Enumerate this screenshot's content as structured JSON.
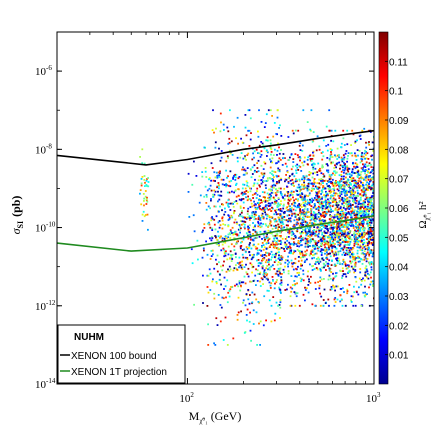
{
  "chart_data": {
    "type": "scatter",
    "xlabel": "M_{χ̃⁰₁} (GeV)",
    "xlabel_main": "M",
    "xlabel_sub": "χ̃⁰₁",
    "xlabel_unit": "(GeV)",
    "ylabel": "σ_SI (pb)",
    "ylabel_main": "σ",
    "ylabel_sub": "SI",
    "ylabel_unit": "(pb)",
    "x_scale": "log",
    "y_scale": "log",
    "xlim": [
      20,
      1000
    ],
    "ylim": [
      1e-14,
      1e-05
    ],
    "x_ticks": [
      {
        "value": 100,
        "base": "10",
        "exp": "2"
      },
      {
        "value": 1000,
        "base": "10",
        "exp": "3"
      }
    ],
    "y_ticks": [
      {
        "value": 1e-06,
        "base": "10",
        "exp": "-6"
      },
      {
        "value": 1e-08,
        "base": "10",
        "exp": "-8"
      },
      {
        "value": 1e-10,
        "base": "10",
        "exp": "-10"
      },
      {
        "value": 1e-12,
        "base": "10",
        "exp": "-12"
      },
      {
        "value": 1e-14,
        "base": "10",
        "exp": "-14"
      }
    ],
    "colorbar": {
      "label": "Ω_{χ̃⁰₁} h²",
      "label_main": "Ω",
      "label_sub": "χ̃⁰₁",
      "label_rest": "h²",
      "range": [
        0.0,
        0.12
      ],
      "ticks": [
        "0.11",
        "0.1",
        "0.09",
        "0.08",
        "0.07",
        "0.06",
        "0.05",
        "0.04",
        "0.03",
        "0.02",
        "0.01"
      ],
      "tick_values": [
        0.11,
        0.1,
        0.09,
        0.08,
        0.07,
        0.06,
        0.05,
        0.04,
        0.03,
        0.02,
        0.01
      ],
      "colormap": "jet"
    },
    "legend": {
      "placement": "bottom-left",
      "entries": [
        {
          "label": "NUHM",
          "style": "none",
          "color": "#000000"
        },
        {
          "label": "XENON 100 bound",
          "style": "line",
          "color": "#000000"
        },
        {
          "label": "XENON 1T projection",
          "style": "line",
          "color": "#1f8a1f"
        }
      ]
    },
    "series": [
      {
        "label_key": "legend.entries.1",
        "color": "#000000",
        "x": [
          20,
          60,
          100,
          200,
          300,
          400,
          500,
          700,
          1000
        ],
        "y": [
          7e-09,
          4e-09,
          5.5e-09,
          1e-08,
          1.3e-08,
          1.6e-08,
          1.9e-08,
          2.4e-08,
          3e-08
        ]
      },
      {
        "label_key": "legend.entries.2",
        "color": "#1f8a1f",
        "x": [
          20,
          50,
          100,
          200,
          300,
          400,
          500,
          700,
          1000
        ],
        "y": [
          4e-11,
          2.5e-11,
          3e-11,
          5.5e-11,
          8e-11,
          1e-10,
          1.2e-10,
          1.5e-10,
          2e-10
        ]
      }
    ],
    "scatter_summary": {
      "total_points": 4000,
      "clusters": [
        {
          "x_range": [
            120,
            320
          ],
          "y_range": [
            1e-13,
            1e-07
          ],
          "relic_range": [
            0.0,
            0.12
          ],
          "share": 0.25
        },
        {
          "x_range": [
            300,
            1000
          ],
          "y_range": [
            1e-12,
            3e-08
          ],
          "relic_range": [
            0.0,
            0.12
          ],
          "share": 0.6
        },
        {
          "x_range": [
            55,
            62
          ],
          "y_range": [
            5e-11,
            1e-08
          ],
          "relic_range": [
            0.03,
            0.1
          ],
          "share": 0.01
        },
        {
          "x_range": [
            100,
            1000
          ],
          "y_range": [
            1e-12,
            1e-07
          ],
          "relic_range": [
            0.0,
            0.06
          ],
          "share": 0.14
        }
      ]
    }
  }
}
